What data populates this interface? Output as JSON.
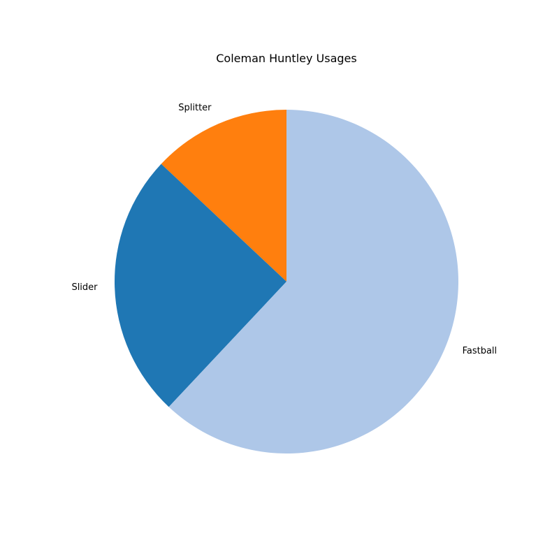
{
  "chart_data": {
    "type": "pie",
    "title": "Coleman Huntley Usages",
    "start_angle_deg": 90,
    "direction": "counterclockwise",
    "slices": [
      {
        "label": "Splitter",
        "value": 13.0,
        "color": "#ff7f0e"
      },
      {
        "label": "Slider",
        "value": 25.0,
        "color": "#1f77b4"
      },
      {
        "label": "Fastball",
        "value": 62.0,
        "color": "#aec7e8"
      }
    ]
  }
}
